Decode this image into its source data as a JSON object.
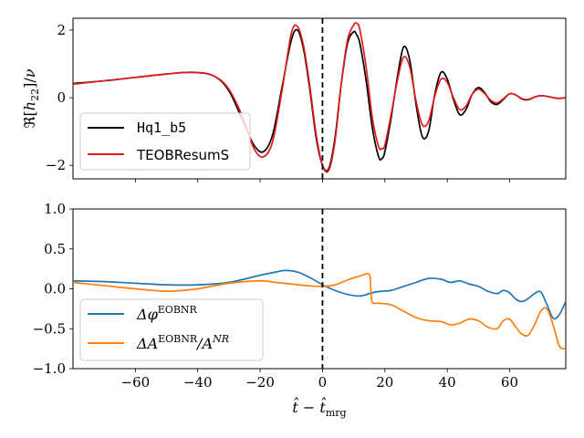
{
  "chart_data": [
    {
      "type": "line",
      "ylabel": "ℜ[h₂₂]/ν",
      "xlim": [
        -80,
        78
      ],
      "ylim": [
        -2.4,
        2.35
      ],
      "xticks": [
        -60,
        -40,
        -20,
        0,
        20,
        40,
        60
      ],
      "yticks": [
        -2,
        0,
        2
      ],
      "ytick_labels": [
        "−2",
        "0",
        "2"
      ],
      "vline_x": 0,
      "legend_position": "lower-left",
      "series": [
        {
          "name": "Hq1_b5",
          "color": "#000000",
          "x": [
            -80,
            -70,
            -60,
            -50,
            -42,
            -35,
            -30,
            -25,
            -22,
            -19,
            -16,
            -13,
            -10,
            -8,
            -6,
            -4,
            -2,
            0,
            2,
            4,
            6,
            8,
            10,
            11,
            12,
            14,
            16,
            18,
            19,
            20,
            22,
            24,
            26,
            28,
            30,
            32,
            34,
            36,
            38,
            40,
            42,
            44,
            46,
            48,
            50,
            52,
            54,
            56,
            58,
            60,
            62,
            64,
            66,
            68,
            70,
            72,
            74,
            76,
            78
          ],
          "y": [
            0.42,
            0.5,
            0.6,
            0.7,
            0.75,
            0.65,
            0.2,
            -0.8,
            -1.4,
            -1.6,
            -1.1,
            0.3,
            1.7,
            2.0,
            1.4,
            0.2,
            -1.2,
            -2.0,
            -2.1,
            -1.2,
            0.4,
            1.6,
            1.95,
            1.85,
            1.6,
            0.5,
            -0.9,
            -1.75,
            -1.8,
            -1.6,
            -0.6,
            0.6,
            1.5,
            1.1,
            -0.2,
            -1.15,
            -1.0,
            0.1,
            0.75,
            0.55,
            -0.05,
            -0.5,
            -0.35,
            0.1,
            0.3,
            0.15,
            -0.12,
            -0.2,
            -0.05,
            0.12,
            0.08,
            -0.04,
            -0.06,
            0.02,
            0.06,
            0.04,
            0.0,
            -0.02,
            0.0
          ]
        },
        {
          "name": "TEOBResumS",
          "color": "#e41a1c",
          "x": [
            -80,
            -70,
            -60,
            -50,
            -42,
            -35,
            -30,
            -25,
            -22,
            -19,
            -16,
            -13,
            -10,
            -8,
            -6,
            -4,
            -2,
            0,
            2,
            4,
            6,
            8,
            10,
            11,
            12,
            14,
            16,
            18,
            19,
            20,
            22,
            24,
            26,
            28,
            30,
            32,
            34,
            36,
            38,
            40,
            42,
            44,
            46,
            48,
            50,
            52,
            54,
            56,
            58,
            60,
            62,
            64,
            66,
            68,
            70,
            72,
            74,
            76,
            78
          ],
          "y": [
            0.4,
            0.5,
            0.6,
            0.7,
            0.75,
            0.65,
            0.25,
            -0.7,
            -1.5,
            -1.75,
            -1.3,
            0.2,
            1.9,
            2.1,
            1.5,
            0.3,
            -1.1,
            -2.0,
            -2.15,
            -1.3,
            0.4,
            1.7,
            2.15,
            2.2,
            2.0,
            0.9,
            -0.6,
            -1.45,
            -1.5,
            -1.4,
            -0.5,
            0.5,
            1.2,
            0.9,
            -0.1,
            -0.8,
            -0.7,
            0.05,
            0.55,
            0.45,
            0.0,
            -0.35,
            -0.25,
            0.1,
            0.25,
            0.12,
            -0.08,
            -0.15,
            -0.03,
            0.12,
            0.08,
            -0.03,
            -0.05,
            0.02,
            0.06,
            0.04,
            0.0,
            -0.02,
            0.0
          ]
        }
      ]
    },
    {
      "type": "line",
      "xlabel": "t̂ − t̂ₘᵣg",
      "xlim": [
        -80,
        78
      ],
      "ylim": [
        -1.0,
        1.0
      ],
      "xticks": [
        -60,
        -40,
        -20,
        0,
        20,
        40,
        60
      ],
      "xtick_labels": [
        "−60",
        "−40",
        "−20",
        "0",
        "20",
        "40",
        "60"
      ],
      "yticks": [
        -1.0,
        -0.5,
        0.0,
        0.5,
        1.0
      ],
      "ytick_labels": [
        "−1.0",
        "−0.5",
        "0.0",
        "0.5",
        "1.0"
      ],
      "vline_x": 0,
      "legend_position": "lower-left",
      "series": [
        {
          "name": "Δφ^EOBNR",
          "color": "#1f77b4",
          "x": [
            -80,
            -70,
            -60,
            -50,
            -40,
            -30,
            -20,
            -15,
            -12,
            -8,
            -4,
            0,
            4,
            8,
            12,
            15,
            17,
            19,
            22,
            26,
            30,
            34,
            38,
            41,
            44,
            47,
            50,
            53,
            56,
            58,
            60,
            62,
            64,
            66,
            68,
            70,
            72,
            74,
            76,
            78
          ],
          "y": [
            0.1,
            0.09,
            0.07,
            0.05,
            0.05,
            0.08,
            0.17,
            0.21,
            0.23,
            0.21,
            0.14,
            0.05,
            -0.02,
            -0.07,
            -0.09,
            -0.06,
            -0.04,
            -0.03,
            -0.02,
            0.03,
            0.08,
            0.13,
            0.12,
            0.08,
            0.1,
            0.06,
            0.03,
            -0.03,
            -0.06,
            -0.02,
            -0.05,
            -0.13,
            -0.16,
            -0.12,
            -0.06,
            -0.04,
            -0.2,
            -0.37,
            -0.32,
            -0.16
          ]
        },
        {
          "name": "ΔA^EOBNR/A^NR",
          "color": "#ff7f0e",
          "x": [
            -80,
            -70,
            -60,
            -50,
            -40,
            -30,
            -20,
            -15,
            -10,
            -5,
            0,
            4,
            8,
            12,
            15,
            15.5,
            16,
            18,
            22,
            26,
            30,
            34,
            38,
            41,
            44,
            47,
            50,
            53,
            56,
            58,
            60,
            62,
            64,
            66,
            68,
            70,
            72,
            74,
            76,
            78
          ],
          "y": [
            0.08,
            0.04,
            0.0,
            -0.03,
            0.0,
            0.07,
            0.1,
            0.08,
            0.06,
            0.04,
            0.03,
            0.05,
            0.11,
            0.16,
            0.18,
            -0.02,
            -0.17,
            -0.18,
            -0.2,
            -0.28,
            -0.36,
            -0.4,
            -0.41,
            -0.45,
            -0.43,
            -0.38,
            -0.4,
            -0.48,
            -0.5,
            -0.4,
            -0.38,
            -0.48,
            -0.57,
            -0.58,
            -0.45,
            -0.28,
            -0.25,
            -0.46,
            -0.72,
            -0.75
          ]
        }
      ]
    }
  ]
}
